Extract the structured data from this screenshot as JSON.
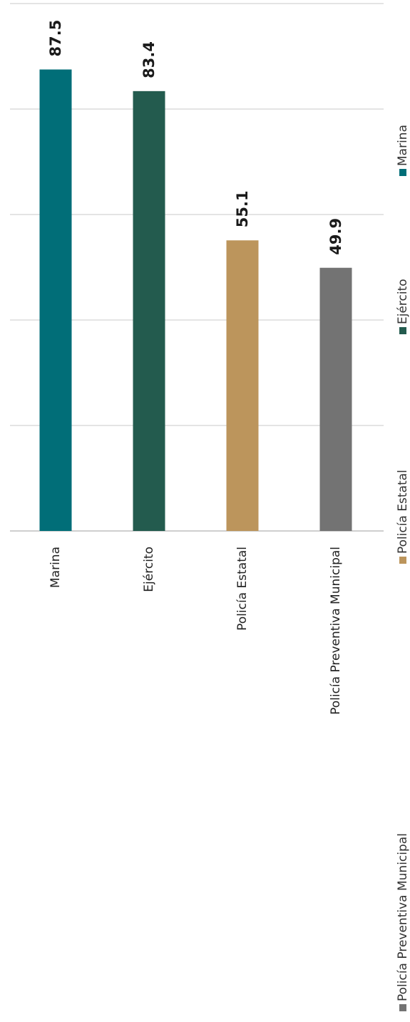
{
  "chart_data": {
    "type": "bar",
    "orientation": "vertical",
    "categories": [
      "Marina",
      "Ejército",
      "Policía Estatal",
      "Policía Preventiva Municipal"
    ],
    "values": [
      87.5,
      83.4,
      55.1,
      49.9
    ],
    "colors": [
      "#016e78",
      "#235b4e",
      "#bc955c",
      "#737373"
    ],
    "ylim": [
      0,
      100
    ],
    "grid": true,
    "value_labels": [
      "87.5",
      "83.4",
      "55.1",
      "49.9"
    ],
    "legend": {
      "placement": "right",
      "entries": [
        {
          "label": "Marina",
          "color": "#016e78"
        },
        {
          "label": "Ejército",
          "color": "#235b4e"
        },
        {
          "label": "Policía Estatal",
          "color": "#bc955c"
        },
        {
          "label": "Policía Preventiva Municipal",
          "color": "#737373"
        }
      ]
    }
  }
}
